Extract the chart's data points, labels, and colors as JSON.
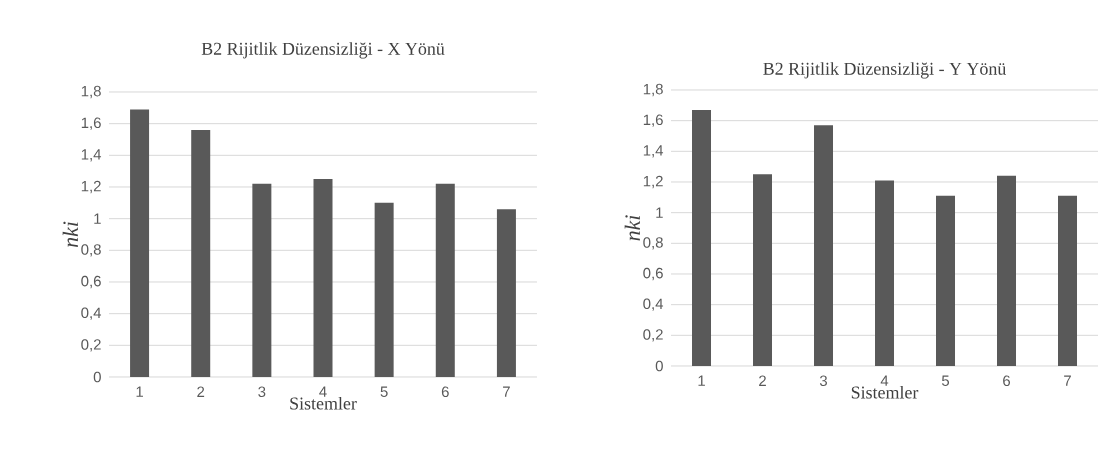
{
  "chart_data": [
    {
      "type": "bar",
      "title": "B2 Rijitlik Düzensizliği - X Yönü",
      "xlabel": "Sistemler",
      "ylabel": "nki",
      "categories": [
        "1",
        "2",
        "3",
        "4",
        "5",
        "6",
        "7"
      ],
      "values": [
        1.69,
        1.56,
        1.22,
        1.25,
        1.1,
        1.22,
        1.06
      ],
      "color": "#595959",
      "ylim": [
        0,
        1.8
      ],
      "yticks": [
        0,
        {
          "value": 0.2,
          "label": "0,2"
        },
        {
          "value": 0.4,
          "label": "0,4"
        },
        {
          "value": 0.6,
          "label": "0,6"
        },
        {
          "value": 0.8,
          "label": "0,8"
        },
        1,
        {
          "value": 1.2,
          "label": "1,2"
        },
        {
          "value": 1.4,
          "label": "1,4"
        },
        {
          "value": 1.6,
          "label": "1,6"
        },
        {
          "value": 1.8,
          "label": "1,8"
        }
      ],
      "grid": "y"
    },
    {
      "type": "bar",
      "title": "B2 Rijitlik Düzensizliği - Y Yönü",
      "xlabel": "Sistemler",
      "ylabel": "nki",
      "categories": [
        "1",
        "2",
        "3",
        "4",
        "5",
        "6",
        "7"
      ],
      "values": [
        1.67,
        1.25,
        1.57,
        1.21,
        1.11,
        1.24,
        1.11
      ],
      "color": "#595959",
      "ylim": [
        0,
        1.8
      ],
      "yticks": [
        0,
        {
          "value": 0.2,
          "label": "0,2"
        },
        {
          "value": 0.4,
          "label": "0,4"
        },
        {
          "value": 0.6,
          "label": "0,6"
        },
        {
          "value": 0.8,
          "label": "0,8"
        },
        1,
        {
          "value": 1.2,
          "label": "1,2"
        },
        {
          "value": 1.4,
          "label": "1,4"
        },
        {
          "value": 1.6,
          "label": "1,6"
        },
        {
          "value": 1.8,
          "label": "1,8"
        }
      ],
      "grid": "y"
    }
  ]
}
